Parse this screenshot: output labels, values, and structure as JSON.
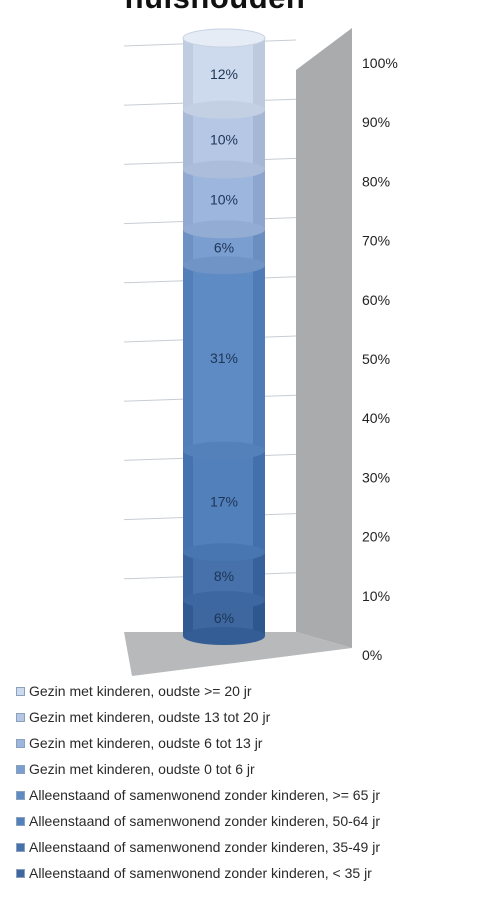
{
  "title": "huishouden",
  "chart_data": {
    "type": "bar",
    "stacked": true,
    "orientation": "vertical",
    "style": "3d-cylinder",
    "categories": [
      ""
    ],
    "ylim": [
      0,
      100
    ],
    "yticks": [
      "0%",
      "10%",
      "20%",
      "30%",
      "40%",
      "50%",
      "60%",
      "70%",
      "80%",
      "90%",
      "100%"
    ],
    "grid": true,
    "legend_position": "bottom",
    "series": [
      {
        "name": "Alleenstaand of samenwonend zonder kinderen, < 35 jr",
        "values": [
          6
        ],
        "label": "6%",
        "color": "#3d679e"
      },
      {
        "name": "Alleenstaand of samenwonend zonder kinderen, 35-49 jr",
        "values": [
          8
        ],
        "label": "8%",
        "color": "#4671aa"
      },
      {
        "name": "Alleenstaand of samenwonend zonder kinderen, 50-64 jr",
        "values": [
          17
        ],
        "label": "17%",
        "color": "#5280bb"
      },
      {
        "name": "Alleenstaand of samenwonend zonder kinderen, >= 65 jr",
        "values": [
          31
        ],
        "label": "31%",
        "color": "#5f8bc5"
      },
      {
        "name": "Gezin met kinderen, oudste 0 tot 6 jr",
        "values": [
          6
        ],
        "label": "6%",
        "color": "#7b9ed0"
      },
      {
        "name": "Gezin met kinderen, oudste 6 tot 13 jr",
        "values": [
          10
        ],
        "label": "10%",
        "color": "#9db6de"
      },
      {
        "name": "Gezin met kinderen, oudste 13 tot 20 jr",
        "values": [
          10
        ],
        "label": "10%",
        "color": "#b5c7e4"
      },
      {
        "name": "Gezin met kinderen, oudste >= 20 jr",
        "values": [
          12
        ],
        "label": "12%",
        "color": "#cdd9ed"
      }
    ],
    "legend": [
      {
        "name": "Gezin met kinderen, oudste >= 20 jr",
        "color": "#cdd9ed"
      },
      {
        "name": "Gezin met kinderen, oudste 13 tot 20 jr",
        "color": "#b5c7e4"
      },
      {
        "name": "Gezin met kinderen, oudste 6 tot 13 jr",
        "color": "#9db6de"
      },
      {
        "name": "Gezin met kinderen, oudste 0 tot 6 jr",
        "color": "#7b9ed0"
      },
      {
        "name": "Alleenstaand of samenwonend zonder kinderen, >= 65 jr",
        "color": "#5f8bc5"
      },
      {
        "name": "Alleenstaand of samenwonend zonder kinderen, 50-64 jr",
        "color": "#5280bb"
      },
      {
        "name": "Alleenstaand of samenwonend zonder kinderen, 35-49 jr",
        "color": "#4671aa"
      },
      {
        "name": "Alleenstaand of samenwonend zonder kinderen, < 35 jr",
        "color": "#3d679e"
      }
    ]
  }
}
